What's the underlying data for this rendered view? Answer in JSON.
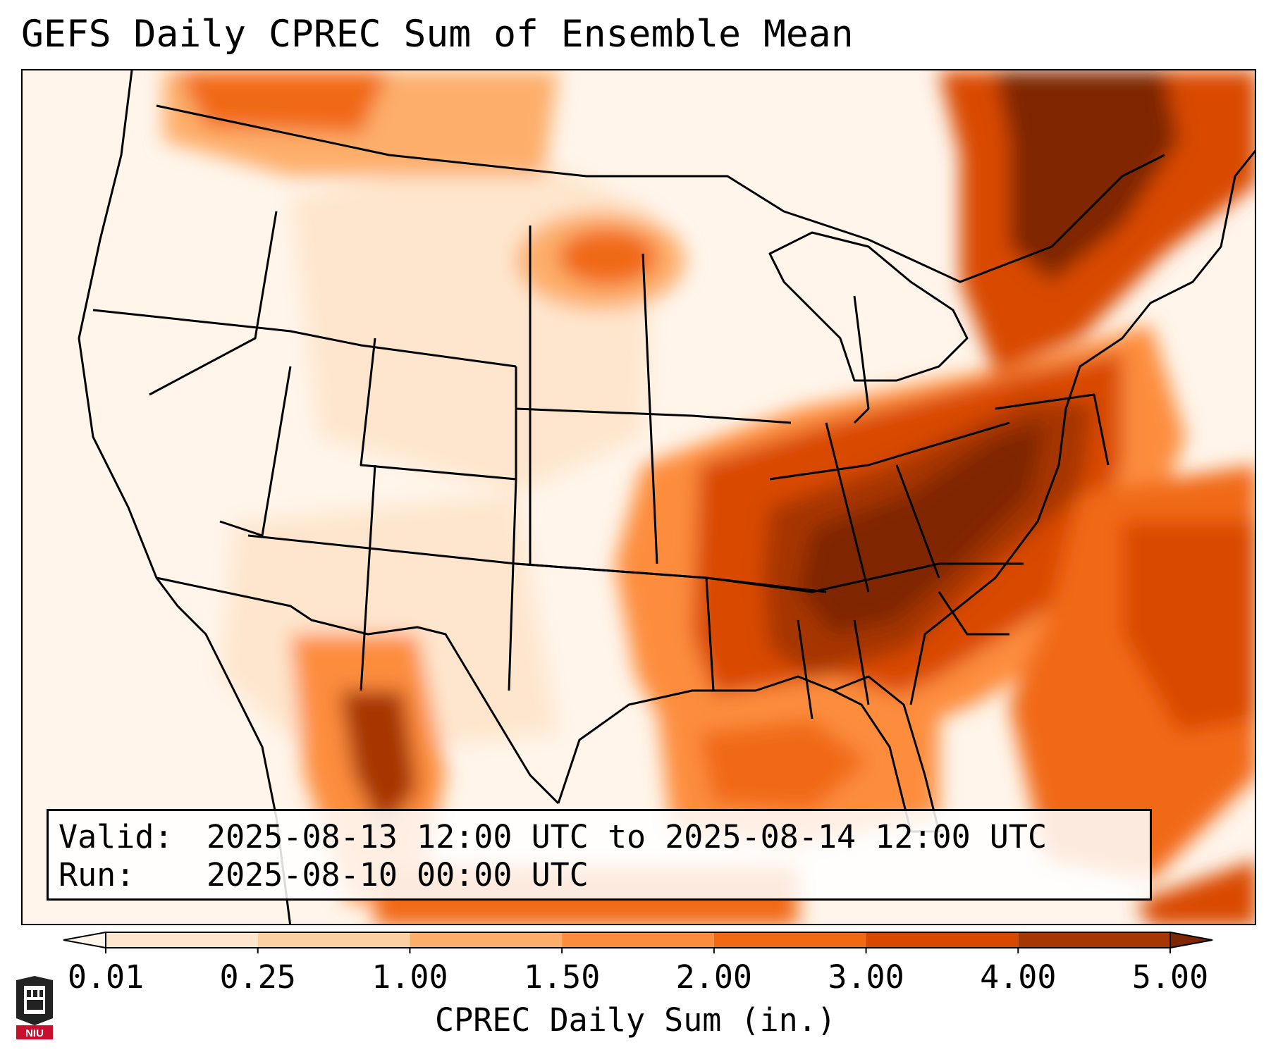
{
  "title": "GEFS Daily CPREC Sum of Ensemble Mean",
  "info": {
    "valid_label": "Valid:",
    "valid_value": "2025-08-13 12:00 UTC to 2025-08-14 12:00 UTC",
    "run_label": "Run:",
    "run_value": "2025-08-10 00:00 UTC"
  },
  "colorbar": {
    "label": "CPREC Daily Sum (in.)",
    "ticks": [
      "0.01",
      "0.25",
      "1.00",
      "1.50",
      "2.00",
      "3.00",
      "4.00",
      "5.00"
    ],
    "colors": [
      "#fff5eb",
      "#fee6ce",
      "#fdd0a2",
      "#fdae6b",
      "#fd8d3c",
      "#f16913",
      "#d94801",
      "#a63603",
      "#7f2704"
    ],
    "extend": "both"
  },
  "map": {
    "region": "CONUS",
    "projection": "lambert-conformal",
    "heavy_precip_regions": [
      "Tennessee Valley",
      "Southeast US",
      "Mid-Atlantic",
      "Quebec",
      "Atlantic offshore",
      "Sierra Madre Occidental"
    ]
  },
  "logo": {
    "text": "NIU",
    "icon": "university-tower-icon"
  }
}
